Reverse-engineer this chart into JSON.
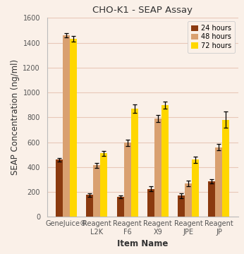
{
  "title": "CHO-K1 - SEAP Assay",
  "xlabel": "Item Name",
  "ylabel": "SEAP Concentration (ng/ml)",
  "categories": [
    "GeneJuice®",
    "Reagent\nL2K",
    "Reagent\nF6",
    "Reagent\nX9",
    "Reagent\nJPE",
    "Reagent\nJP"
  ],
  "series": {
    "24 hours": {
      "values": [
        460,
        175,
        160,
        225,
        170,
        285
      ],
      "errors": [
        15,
        15,
        12,
        18,
        20,
        18
      ],
      "color": "#8B3A0F"
    },
    "48 hours": {
      "values": [
        1460,
        415,
        595,
        790,
        270,
        560
      ],
      "errors": [
        18,
        20,
        25,
        30,
        22,
        28
      ],
      "color": "#D9A070"
    },
    "72 hours": {
      "values": [
        1430,
        510,
        870,
        900,
        460,
        780
      ],
      "errors": [
        22,
        20,
        35,
        28,
        25,
        65
      ],
      "color": "#FFD700"
    }
  },
  "ylim": [
    0,
    1600
  ],
  "yticks": [
    0,
    200,
    400,
    600,
    800,
    1000,
    1200,
    1400,
    1600
  ],
  "fig_bg": "#FAF0E8",
  "plot_bg": "#FAF0E8",
  "grid_color": "#E8C8B8",
  "bar_width": 0.23,
  "title_fontsize": 9.5,
  "axis_label_fontsize": 8.5,
  "tick_fontsize": 7,
  "legend_fontsize": 7,
  "spine_color": "#BBBBBB"
}
